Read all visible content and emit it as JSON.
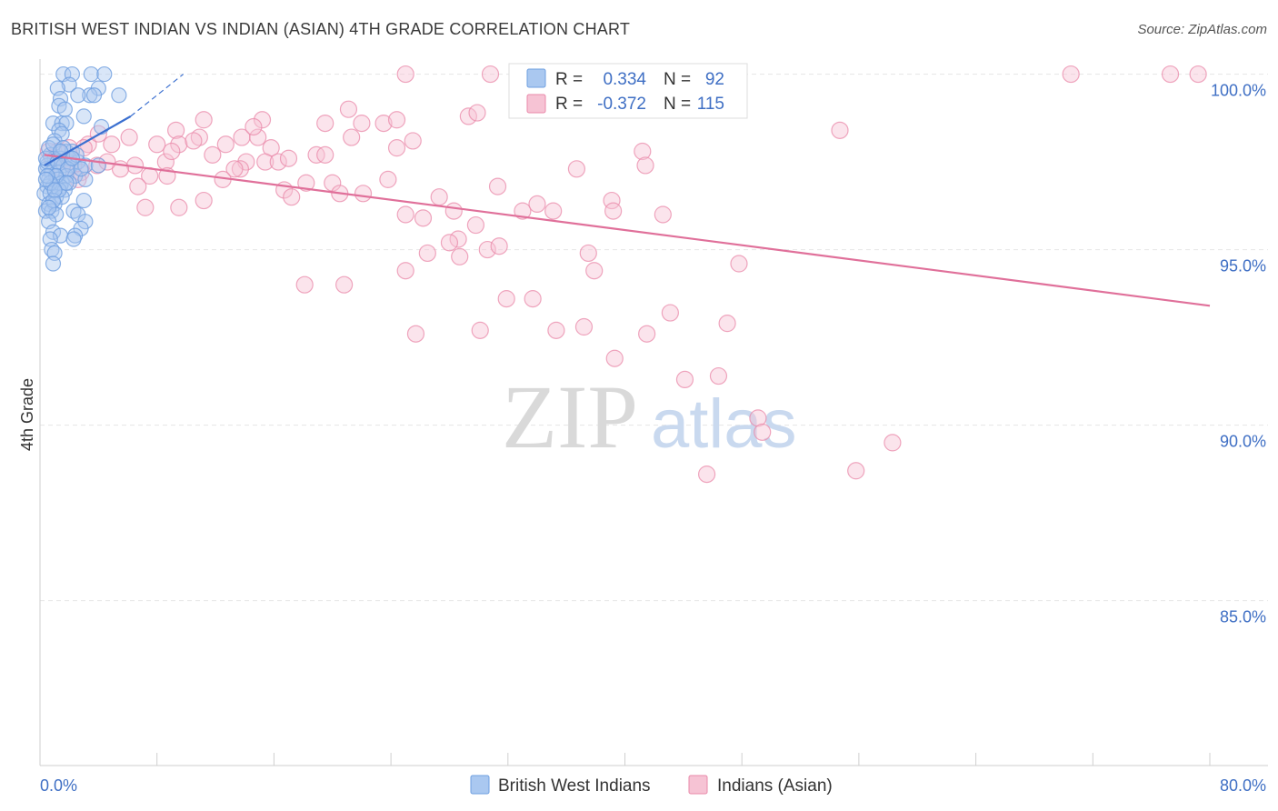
{
  "title": "BRITISH WEST INDIAN VS INDIAN (ASIAN) 4TH GRADE CORRELATION CHART",
  "source": "Source: ZipAtlas.com",
  "watermark": {
    "zip": "ZIP",
    "atlas": "atlas"
  },
  "colors": {
    "blue": "#6f9fe0",
    "blue_fill": "#aac8f0",
    "blue_line": "#3a6fd0",
    "pink": "#e989aa",
    "pink_fill": "#f6c3d4",
    "pink_line": "#e0709a",
    "grid": "#e6e6e6",
    "tick_text": "#3f6fc4"
  },
  "stats": {
    "r_label": "R =",
    "n_label": "N =",
    "blue": {
      "r": "0.334",
      "n": "92"
    },
    "pink": {
      "r": "-0.372",
      "n": "115"
    }
  },
  "chart_data": {
    "type": "scatter",
    "title": "BRITISH WEST INDIAN VS INDIAN (ASIAN) 4TH GRADE CORRELATION CHART",
    "xlabel": "",
    "ylabel": "4th Grade",
    "xlim": [
      0,
      80
    ],
    "ylim": [
      80.3,
      100.3
    ],
    "x_tick_labels": [
      "0.0%",
      "80.0%"
    ],
    "y_ticks": [
      85,
      90,
      95,
      100
    ],
    "y_tick_labels": [
      "85.0%",
      "90.0%",
      "95.0%",
      "100.0%"
    ],
    "legend": [
      "British West Indians",
      "Indians (Asian)"
    ],
    "series": [
      {
        "name": "British West Indians",
        "color": "#6f9fe0",
        "r": 0.334,
        "n": 92,
        "trend": {
          "x": [
            0.3,
            6.2
          ],
          "y": [
            97.4,
            98.8
          ]
        },
        "trend_ext": {
          "x": [
            6.2,
            9.8
          ],
          "y": [
            98.8,
            100.0
          ]
        },
        "points": [
          [
            1.6,
            100.0
          ],
          [
            2.2,
            100.0
          ],
          [
            3.5,
            100.0
          ],
          [
            4.4,
            100.0
          ],
          [
            2.0,
            99.7
          ],
          [
            4.0,
            99.6
          ],
          [
            1.2,
            99.6
          ],
          [
            3.4,
            99.4
          ],
          [
            3.7,
            99.4
          ],
          [
            5.4,
            99.4
          ],
          [
            1.4,
            99.3
          ],
          [
            2.6,
            99.4
          ],
          [
            1.3,
            99.1
          ],
          [
            1.7,
            99.0
          ],
          [
            3.0,
            98.8
          ],
          [
            0.9,
            98.6
          ],
          [
            1.5,
            98.6
          ],
          [
            1.8,
            98.6
          ],
          [
            4.2,
            98.5
          ],
          [
            1.3,
            98.4
          ],
          [
            1.5,
            98.3
          ],
          [
            1.0,
            98.1
          ],
          [
            1.8,
            97.8
          ],
          [
            2.2,
            97.8
          ],
          [
            0.7,
            97.7
          ],
          [
            1.0,
            97.6
          ],
          [
            1.4,
            97.6
          ],
          [
            2.0,
            97.6
          ],
          [
            2.6,
            97.5
          ],
          [
            0.5,
            97.4
          ],
          [
            1.0,
            97.4
          ],
          [
            1.6,
            97.4
          ],
          [
            2.1,
            97.4
          ],
          [
            3.1,
            97.4
          ],
          [
            4.0,
            97.4
          ],
          [
            0.4,
            97.3
          ],
          [
            0.8,
            97.2
          ],
          [
            1.3,
            97.2
          ],
          [
            1.8,
            97.1
          ],
          [
            2.4,
            97.1
          ],
          [
            0.6,
            97.0
          ],
          [
            1.2,
            97.0
          ],
          [
            1.5,
            96.9
          ],
          [
            2.0,
            96.9
          ],
          [
            3.1,
            97.0
          ],
          [
            0.5,
            96.8
          ],
          [
            0.9,
            96.8
          ],
          [
            1.4,
            96.8
          ],
          [
            1.7,
            96.7
          ],
          [
            0.3,
            96.6
          ],
          [
            0.7,
            96.6
          ],
          [
            1.1,
            96.5
          ],
          [
            1.5,
            96.5
          ],
          [
            3.0,
            96.4
          ],
          [
            0.6,
            96.3
          ],
          [
            1.0,
            96.3
          ],
          [
            0.4,
            96.1
          ],
          [
            0.8,
            96.1
          ],
          [
            1.1,
            96.0
          ],
          [
            2.3,
            96.1
          ],
          [
            2.6,
            96.0
          ],
          [
            3.1,
            95.8
          ],
          [
            0.6,
            95.8
          ],
          [
            2.8,
            95.6
          ],
          [
            0.9,
            95.5
          ],
          [
            1.4,
            95.4
          ],
          [
            2.4,
            95.4
          ],
          [
            0.7,
            95.3
          ],
          [
            2.3,
            95.3
          ],
          [
            0.8,
            95.0
          ],
          [
            1.0,
            94.9
          ],
          [
            0.9,
            94.6
          ],
          [
            0.5,
            97.5
          ],
          [
            0.4,
            97.6
          ],
          [
            1.2,
            97.5
          ],
          [
            1.9,
            97.3
          ],
          [
            2.5,
            97.7
          ],
          [
            0.6,
            97.9
          ],
          [
            0.9,
            98.0
          ],
          [
            1.6,
            97.9
          ],
          [
            1.1,
            97.1
          ],
          [
            0.7,
            96.9
          ],
          [
            0.5,
            97.1
          ],
          [
            2.8,
            97.3
          ],
          [
            1.3,
            96.7
          ],
          [
            0.9,
            96.4
          ],
          [
            0.6,
            96.2
          ],
          [
            1.8,
            96.9
          ],
          [
            2.2,
            97.6
          ],
          [
            0.4,
            97.0
          ],
          [
            1.4,
            97.8
          ],
          [
            1.0,
            96.7
          ]
        ]
      },
      {
        "name": "Indians (Asian)",
        "color": "#e989aa",
        "r": -0.372,
        "n": 115,
        "trend": {
          "x": [
            0.3,
            80.0
          ],
          "y": [
            97.7,
            93.4
          ]
        },
        "points": [
          [
            25.0,
            100.0
          ],
          [
            30.8,
            100.0
          ],
          [
            70.5,
            100.0
          ],
          [
            77.3,
            100.0
          ],
          [
            79.2,
            100.0
          ],
          [
            21.1,
            99.0
          ],
          [
            29.3,
            98.8
          ],
          [
            29.9,
            98.9
          ],
          [
            11.2,
            98.7
          ],
          [
            15.2,
            98.7
          ],
          [
            19.5,
            98.6
          ],
          [
            22.0,
            98.6
          ],
          [
            23.5,
            98.6
          ],
          [
            24.4,
            98.7
          ],
          [
            54.7,
            98.4
          ],
          [
            9.3,
            98.4
          ],
          [
            10.9,
            98.2
          ],
          [
            13.8,
            98.2
          ],
          [
            14.9,
            98.2
          ],
          [
            21.3,
            98.2
          ],
          [
            25.5,
            98.1
          ],
          [
            6.1,
            98.2
          ],
          [
            8.0,
            98.0
          ],
          [
            9.5,
            98.0
          ],
          [
            12.7,
            98.0
          ],
          [
            15.8,
            97.9
          ],
          [
            24.4,
            97.9
          ],
          [
            4.9,
            98.0
          ],
          [
            3.3,
            98.0
          ],
          [
            2.0,
            97.9
          ],
          [
            18.9,
            97.7
          ],
          [
            19.5,
            97.7
          ],
          [
            11.8,
            97.7
          ],
          [
            14.1,
            97.5
          ],
          [
            15.4,
            97.5
          ],
          [
            16.3,
            97.5
          ],
          [
            8.6,
            97.5
          ],
          [
            13.7,
            97.3
          ],
          [
            13.3,
            97.3
          ],
          [
            6.5,
            97.4
          ],
          [
            7.5,
            97.1
          ],
          [
            8.7,
            97.1
          ],
          [
            18.2,
            96.9
          ],
          [
            20.0,
            96.9
          ],
          [
            16.7,
            96.7
          ],
          [
            6.7,
            96.8
          ],
          [
            3.9,
            97.4
          ],
          [
            2.8,
            97.2
          ],
          [
            1.9,
            97.5
          ],
          [
            36.7,
            97.3
          ],
          [
            41.2,
            97.8
          ],
          [
            41.4,
            97.4
          ],
          [
            31.3,
            96.8
          ],
          [
            20.5,
            96.6
          ],
          [
            22.1,
            96.6
          ],
          [
            17.2,
            96.5
          ],
          [
            39.1,
            96.4
          ],
          [
            35.1,
            96.1
          ],
          [
            39.2,
            96.1
          ],
          [
            42.6,
            96.0
          ],
          [
            25.0,
            96.0
          ],
          [
            26.2,
            95.9
          ],
          [
            28.3,
            96.1
          ],
          [
            11.2,
            96.4
          ],
          [
            9.5,
            96.2
          ],
          [
            7.2,
            96.2
          ],
          [
            33.0,
            96.1
          ],
          [
            29.8,
            95.7
          ],
          [
            28.6,
            95.3
          ],
          [
            28.0,
            95.2
          ],
          [
            30.6,
            95.0
          ],
          [
            31.4,
            95.1
          ],
          [
            37.5,
            94.9
          ],
          [
            26.5,
            94.9
          ],
          [
            28.7,
            94.8
          ],
          [
            25.0,
            94.4
          ],
          [
            37.9,
            94.4
          ],
          [
            47.8,
            94.6
          ],
          [
            18.1,
            94.0
          ],
          [
            20.8,
            94.0
          ],
          [
            31.9,
            93.6
          ],
          [
            33.7,
            93.6
          ],
          [
            43.1,
            93.2
          ],
          [
            47.0,
            92.9
          ],
          [
            30.1,
            92.7
          ],
          [
            35.3,
            92.7
          ],
          [
            37.2,
            92.8
          ],
          [
            41.5,
            92.6
          ],
          [
            25.7,
            92.6
          ],
          [
            39.3,
            91.9
          ],
          [
            44.1,
            91.3
          ],
          [
            46.4,
            91.4
          ],
          [
            49.1,
            90.2
          ],
          [
            49.4,
            89.8
          ],
          [
            58.3,
            89.5
          ],
          [
            55.8,
            88.7
          ],
          [
            45.6,
            88.6
          ],
          [
            10.5,
            98.1
          ],
          [
            17.0,
            97.6
          ],
          [
            23.8,
            97.0
          ],
          [
            27.3,
            96.5
          ],
          [
            34.0,
            96.3
          ],
          [
            12.5,
            97.0
          ],
          [
            5.5,
            97.3
          ],
          [
            4.0,
            98.3
          ],
          [
            3.0,
            97.9
          ],
          [
            2.3,
            97.4
          ],
          [
            1.2,
            97.8
          ],
          [
            0.6,
            97.8
          ],
          [
            0.8,
            97.6
          ],
          [
            1.5,
            97.3
          ],
          [
            2.6,
            97.0
          ],
          [
            4.6,
            97.5
          ],
          [
            9.0,
            97.8
          ],
          [
            14.6,
            98.5
          ]
        ]
      }
    ]
  }
}
